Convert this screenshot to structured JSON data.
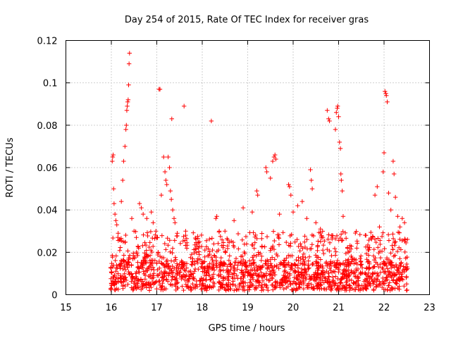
{
  "chart_data": {
    "type": "scatter",
    "title": "Day 254 of 2015, Rate Of TEC Index for receiver gras",
    "xlabel": "GPS time / hours",
    "ylabel": "ROTI / TECUs",
    "xlim": [
      15,
      23
    ],
    "ylim": [
      0,
      0.12
    ],
    "xticks": [
      "15",
      "16",
      "17",
      "18",
      "19",
      "20",
      "21",
      "22",
      "23"
    ],
    "yticks": [
      "0",
      "0.02",
      "0.04",
      "0.06",
      "0.08",
      "0.1",
      "0.12"
    ],
    "grid": true,
    "marker": "+",
    "series": [
      {
        "name": "ROTI",
        "color": "#ff0000",
        "points": [
          [
            16.02,
            0.063
          ],
          [
            16.03,
            0.065
          ],
          [
            16.04,
            0.066
          ],
          [
            16.05,
            0.05
          ],
          [
            16.06,
            0.043
          ],
          [
            16.08,
            0.038
          ],
          [
            16.1,
            0.035
          ],
          [
            16.12,
            0.033
          ],
          [
            16.15,
            0.029
          ],
          [
            16.18,
            0.026
          ],
          [
            16.22,
            0.044
          ],
          [
            16.25,
            0.054
          ],
          [
            16.27,
            0.063
          ],
          [
            16.3,
            0.07
          ],
          [
            16.32,
            0.078
          ],
          [
            16.33,
            0.08
          ],
          [
            16.34,
            0.087
          ],
          [
            16.35,
            0.089
          ],
          [
            16.36,
            0.091
          ],
          [
            16.37,
            0.092
          ],
          [
            16.38,
            0.099
          ],
          [
            16.39,
            0.109
          ],
          [
            16.4,
            0.114
          ],
          [
            16.45,
            0.036
          ],
          [
            16.5,
            0.03
          ],
          [
            16.55,
            0.027
          ],
          [
            16.62,
            0.043
          ],
          [
            16.66,
            0.041
          ],
          [
            16.7,
            0.038
          ],
          [
            16.78,
            0.036
          ],
          [
            16.88,
            0.039
          ],
          [
            16.92,
            0.034
          ],
          [
            16.98,
            0.03
          ],
          [
            17.05,
            0.097
          ],
          [
            17.07,
            0.097
          ],
          [
            17.1,
            0.047
          ],
          [
            17.15,
            0.065
          ],
          [
            17.18,
            0.058
          ],
          [
            17.2,
            0.054
          ],
          [
            17.22,
            0.052
          ],
          [
            17.25,
            0.065
          ],
          [
            17.28,
            0.06
          ],
          [
            17.3,
            0.049
          ],
          [
            17.32,
            0.045
          ],
          [
            17.33,
            0.083
          ],
          [
            17.35,
            0.04
          ],
          [
            17.38,
            0.036
          ],
          [
            17.4,
            0.034
          ],
          [
            17.45,
            0.029
          ],
          [
            17.6,
            0.089
          ],
          [
            17.8,
            0.01
          ],
          [
            18.2,
            0.082
          ],
          [
            18.3,
            0.036
          ],
          [
            18.32,
            0.037
          ],
          [
            18.5,
            0.03
          ],
          [
            18.7,
            0.035
          ],
          [
            18.9,
            0.041
          ],
          [
            19.1,
            0.039
          ],
          [
            19.2,
            0.049
          ],
          [
            19.22,
            0.047
          ],
          [
            19.4,
            0.06
          ],
          [
            19.42,
            0.058
          ],
          [
            19.5,
            0.055
          ],
          [
            19.55,
            0.063
          ],
          [
            19.58,
            0.065
          ],
          [
            19.6,
            0.066
          ],
          [
            19.62,
            0.064
          ],
          [
            19.7,
            0.038
          ],
          [
            19.9,
            0.052
          ],
          [
            19.92,
            0.051
          ],
          [
            19.95,
            0.047
          ],
          [
            20.0,
            0.039
          ],
          [
            20.1,
            0.042
          ],
          [
            20.2,
            0.044
          ],
          [
            20.3,
            0.036
          ],
          [
            20.38,
            0.059
          ],
          [
            20.4,
            0.054
          ],
          [
            20.42,
            0.05
          ],
          [
            20.5,
            0.034
          ],
          [
            20.6,
            0.031
          ],
          [
            20.75,
            0.087
          ],
          [
            20.78,
            0.083
          ],
          [
            20.8,
            0.082
          ],
          [
            20.85,
            0.028
          ],
          [
            20.93,
            0.078
          ],
          [
            20.95,
            0.086
          ],
          [
            20.97,
            0.088
          ],
          [
            20.98,
            0.089
          ],
          [
            21.0,
            0.084
          ],
          [
            21.02,
            0.072
          ],
          [
            21.04,
            0.069
          ],
          [
            21.05,
            0.057
          ],
          [
            21.06,
            0.054
          ],
          [
            21.08,
            0.049
          ],
          [
            21.1,
            0.037
          ],
          [
            21.2,
            0.016
          ],
          [
            21.4,
            0.022
          ],
          [
            21.6,
            0.028
          ],
          [
            21.8,
            0.047
          ],
          [
            21.85,
            0.051
          ],
          [
            21.9,
            0.032
          ],
          [
            21.98,
            0.058
          ],
          [
            22.0,
            0.067
          ],
          [
            22.02,
            0.096
          ],
          [
            22.04,
            0.095
          ],
          [
            22.05,
            0.094
          ],
          [
            22.07,
            0.091
          ],
          [
            22.1,
            0.048
          ],
          [
            22.15,
            0.04
          ],
          [
            22.2,
            0.063
          ],
          [
            22.22,
            0.057
          ],
          [
            22.25,
            0.046
          ],
          [
            22.3,
            0.037
          ],
          [
            22.35,
            0.032
          ],
          [
            22.4,
            0.036
          ],
          [
            22.45,
            0.034
          ],
          [
            22.5,
            0.012
          ]
        ],
        "baseline_band": {
          "x_range": [
            15.98,
            22.52
          ],
          "typical_range": [
            0.002,
            0.015
          ],
          "spike_max": 0.03
        }
      }
    ]
  }
}
